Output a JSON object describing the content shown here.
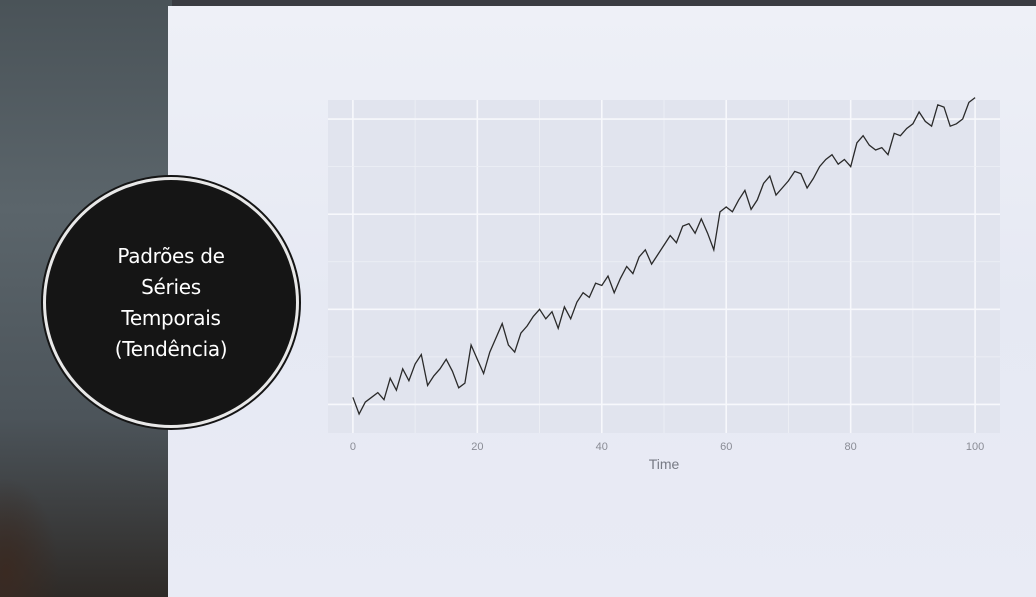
{
  "slide_title": {
    "lines": [
      "Padrões de",
      "Séries",
      "Temporais",
      "(Tendência)"
    ]
  },
  "chart_data": {
    "type": "line",
    "xlabel": "Time",
    "ylabel": "",
    "x_ticks": [
      0,
      20,
      40,
      60,
      80,
      100
    ],
    "x_tick_labels": [
      "0",
      "20",
      "40",
      "60",
      "80",
      "100"
    ],
    "xlim": [
      -4,
      104
    ],
    "ylim": [
      -1.2,
      12.8
    ],
    "grid": true,
    "background": "#e1e4ee",
    "line_color": "#2a2a2a",
    "x": [
      0,
      1,
      2,
      3,
      4,
      5,
      6,
      7,
      8,
      9,
      10,
      11,
      12,
      13,
      14,
      15,
      16,
      17,
      18,
      19,
      20,
      21,
      22,
      23,
      24,
      25,
      26,
      27,
      28,
      29,
      30,
      31,
      32,
      33,
      34,
      35,
      36,
      37,
      38,
      39,
      40,
      41,
      42,
      43,
      44,
      45,
      46,
      47,
      48,
      49,
      50,
      51,
      52,
      53,
      54,
      55,
      56,
      57,
      58,
      59,
      60,
      61,
      62,
      63,
      64,
      65,
      66,
      67,
      68,
      69,
      70,
      71,
      72,
      73,
      74,
      75,
      76,
      77,
      78,
      79,
      80,
      81,
      82,
      83,
      84,
      85,
      86,
      87,
      88,
      89,
      90,
      91,
      92,
      93,
      94,
      95,
      96,
      97,
      98,
      99,
      100
    ],
    "values": [
      0.3,
      -0.4,
      0.1,
      0.3,
      0.5,
      0.2,
      1.1,
      0.6,
      1.5,
      1.0,
      1.7,
      2.1,
      0.8,
      1.2,
      1.5,
      1.9,
      1.4,
      0.7,
      0.9,
      2.5,
      1.9,
      1.3,
      2.2,
      2.8,
      3.4,
      2.5,
      2.2,
      3.0,
      3.3,
      3.7,
      4.0,
      3.6,
      3.9,
      3.2,
      4.1,
      3.6,
      4.3,
      4.7,
      4.5,
      5.1,
      5.0,
      5.4,
      4.7,
      5.3,
      5.8,
      5.5,
      6.2,
      6.5,
      5.9,
      6.3,
      6.7,
      7.1,
      6.8,
      7.5,
      7.6,
      7.2,
      7.8,
      7.2,
      6.5,
      8.1,
      8.3,
      8.1,
      8.6,
      9.0,
      8.2,
      8.6,
      9.3,
      9.6,
      8.8,
      9.1,
      9.4,
      9.8,
      9.7,
      9.1,
      9.5,
      10.0,
      10.3,
      10.5,
      10.1,
      10.3,
      10.0,
      11.0,
      11.3,
      10.9,
      10.7,
      10.8,
      10.5,
      11.4,
      11.3,
      11.6,
      11.8,
      12.3,
      11.9,
      11.7,
      12.6,
      12.5,
      11.7,
      11.8,
      12.0,
      12.7,
      12.9
    ]
  }
}
